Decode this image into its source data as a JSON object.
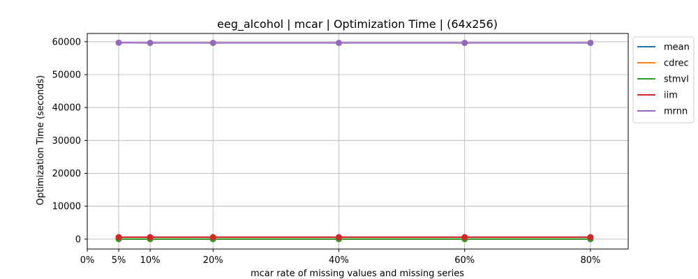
{
  "chart_data": {
    "type": "line",
    "title": "eeg_alcohol | mcar | Optimization Time | (64x256)",
    "xlabel": "mcar rate of missing values and missing series",
    "ylabel": "Optimization Time (seconds)",
    "x": [
      5,
      10,
      20,
      40,
      60,
      80
    ],
    "xticks": [
      0,
      5,
      10,
      20,
      40,
      60,
      80
    ],
    "xtick_labels": [
      "0%",
      "5%",
      "10%",
      "20%",
      "40%",
      "60%",
      "80%"
    ],
    "xlim": [
      0,
      86
    ],
    "yticks": [
      0,
      10000,
      20000,
      30000,
      40000,
      50000,
      60000
    ],
    "ytick_labels": [
      "0",
      "10000",
      "20000",
      "30000",
      "40000",
      "50000",
      "60000"
    ],
    "ylim": [
      -3000,
      62500
    ],
    "grid": true,
    "legend_position": "outside-right",
    "series": [
      {
        "name": "mean",
        "color": "#1f77b4",
        "values": [
          0,
          0,
          0,
          0,
          0,
          0
        ]
      },
      {
        "name": "cdrec",
        "color": "#ff7f0e",
        "values": [
          10,
          10,
          10,
          10,
          10,
          10
        ]
      },
      {
        "name": "stmvl",
        "color": "#2ca02c",
        "values": [
          50,
          50,
          50,
          50,
          50,
          50
        ]
      },
      {
        "name": "iim",
        "color": "#d62728",
        "values": [
          600,
          600,
          600,
          600,
          600,
          600
        ]
      },
      {
        "name": "mrnn",
        "color": "#9467bd",
        "values": [
          59700,
          59650,
          59650,
          59650,
          59650,
          59650
        ]
      }
    ]
  }
}
